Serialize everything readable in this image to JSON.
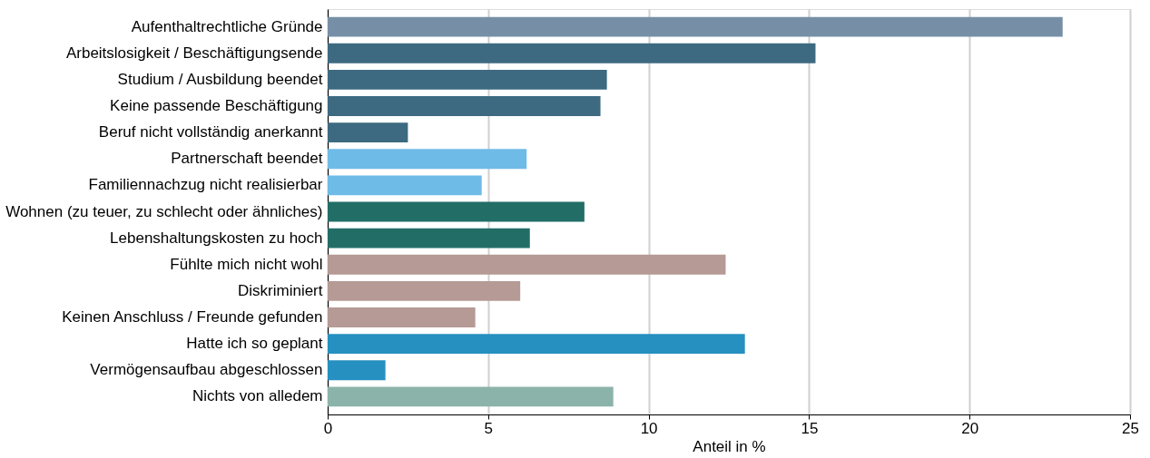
{
  "chart_data": {
    "type": "bar",
    "orientation": "horizontal",
    "xlabel": "Anteil in %",
    "categories": [
      "Aufenthaltrechtliche Gründe",
      "Arbeitslosigkeit / Beschäftigungsende",
      "Studium / Ausbildung beendet",
      "Keine passende Beschäftigung",
      "Beruf nicht vollständig anerkannt",
      "Partnerschaft beendet",
      "Familiennachzug nicht realisierbar",
      "Wohnen (zu teuer, zu schlecht oder ähnliches)",
      "Lebenshaltungskosten zu hoch",
      "Fühlte mich nicht wohl",
      "Diskriminiert",
      "Keinen Anschluss / Freunde gefunden",
      "Hatte ich so geplant",
      "Vermögensaufbau abgeschlossen",
      "Nichts von alledem"
    ],
    "values": [
      22.9,
      15.2,
      8.7,
      8.5,
      2.5,
      6.2,
      4.8,
      8.0,
      6.3,
      12.4,
      6.0,
      4.6,
      13.0,
      1.8,
      8.9
    ],
    "colors": [
      "#768fa6",
      "#3d6a80",
      "#3d6a80",
      "#3d6a80",
      "#3d6a80",
      "#6fbbe8",
      "#6fbbe8",
      "#226e67",
      "#226e67",
      "#b59a95",
      "#b59a95",
      "#b59a95",
      "#2690c0",
      "#2690c0",
      "#8cb3aa"
    ],
    "xlim": [
      0,
      25
    ],
    "xticks": [
      0,
      5,
      10,
      15,
      20,
      25
    ],
    "grid": "x"
  }
}
